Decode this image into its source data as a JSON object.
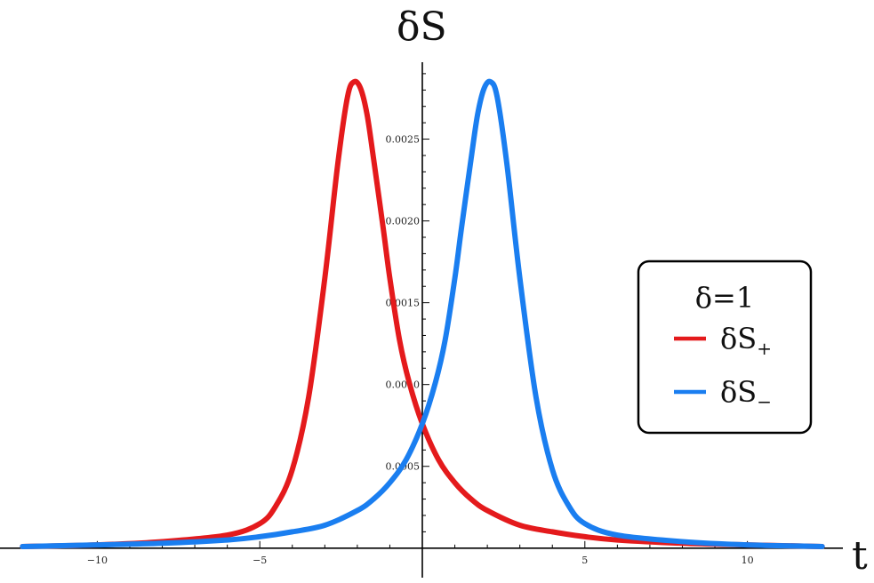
{
  "chart_data": {
    "type": "line",
    "xlabel": "t",
    "ylabel": "δS",
    "xlim": [
      -12.5,
      12.5
    ],
    "ylim": [
      -5e-05,
      0.00297
    ],
    "x_ticks": [
      -10,
      -5,
      5,
      10
    ],
    "x_tick_labels": [
      "−10",
      "−5",
      "5",
      "10"
    ],
    "y_ticks": [
      0.0005,
      0.001,
      0.0015,
      0.002,
      0.0025
    ],
    "y_tick_labels": [
      "0.0005",
      "0.0010",
      "0.0015",
      "0.0020",
      "0.0025"
    ],
    "legend": {
      "title": "δ=1",
      "placement": "right"
    },
    "series": [
      {
        "name": "δS",
        "name_sub": "+",
        "color": "#e41a1c",
        "x": [
          -12.3,
          -10,
          -8,
          -6,
          -5,
          -4.5,
          -4,
          -3.5,
          -3,
          -2.6,
          -2.3,
          -2.1,
          -1.9,
          -1.7,
          -1.5,
          -1.2,
          -1,
          -0.7,
          -0.4,
          0,
          0.5,
          1,
          1.5,
          2,
          3,
          4,
          5,
          6,
          8,
          10,
          12.3
        ],
        "y": [
          1e-05,
          2e-05,
          4e-05,
          8e-05,
          0.00015,
          0.00026,
          0.00048,
          0.00092,
          0.00165,
          0.00235,
          0.00276,
          0.00285,
          0.00281,
          0.00265,
          0.00238,
          0.00195,
          0.00165,
          0.00127,
          0.00101,
          0.00076,
          0.00054,
          0.0004,
          0.0003,
          0.00023,
          0.00014,
          0.0001,
          7e-05,
          5e-05,
          3e-05,
          2e-05,
          1e-05
        ]
      },
      {
        "name": "δS",
        "name_sub": "−",
        "color": "#1a7ef0",
        "x": [
          -12.3,
          -10,
          -8,
          -6,
          -5,
          -4,
          -3,
          -2,
          -1.5,
          -1,
          -0.5,
          0,
          0.4,
          0.7,
          1,
          1.2,
          1.5,
          1.7,
          1.9,
          2.1,
          2.3,
          2.6,
          3,
          3.5,
          4,
          4.5,
          5,
          6,
          8,
          10,
          12.3
        ],
        "y": [
          1e-05,
          2e-05,
          3e-05,
          5e-05,
          7e-05,
          0.0001,
          0.00014,
          0.00023,
          0.0003,
          0.0004,
          0.00054,
          0.00076,
          0.00101,
          0.00127,
          0.00165,
          0.00195,
          0.00238,
          0.00265,
          0.00281,
          0.00285,
          0.00276,
          0.00235,
          0.00165,
          0.00092,
          0.00048,
          0.00026,
          0.00015,
          8e-05,
          4e-05,
          2e-05,
          1e-05
        ]
      }
    ]
  }
}
